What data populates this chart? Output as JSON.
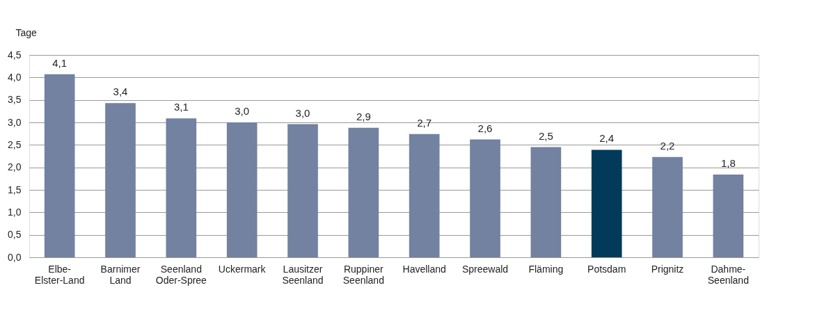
{
  "chart_data": {
    "type": "bar",
    "ylabel": "Tage",
    "categories": [
      "Elbe-\nElster-Land",
      "Barnimer\nLand",
      "Seenland\nOder-Spree",
      "Uckermark",
      "Lausitzer\nSeenland",
      "Ruppiner\nSeenland",
      "Havelland",
      "Spreewald",
      "Fläming",
      "Potsdam",
      "Prignitz",
      "Dahme-\nSeenland"
    ],
    "values": [
      4.07,
      3.43,
      3.09,
      3.0,
      2.96,
      2.88,
      2.74,
      2.62,
      2.45,
      2.39,
      2.23,
      1.84
    ],
    "value_labels": [
      "4,1",
      "3,4",
      "3,1",
      "3,0",
      "3,0",
      "2,9",
      "2,7",
      "2,6",
      "2,5",
      "2,4",
      "2,2",
      "1,8"
    ],
    "colors": [
      "#7282a0",
      "#7282a0",
      "#7282a0",
      "#7282a0",
      "#7282a0",
      "#7282a0",
      "#7282a0",
      "#7282a0",
      "#7282a0",
      "#023a5a",
      "#7282a0",
      "#7282a0"
    ],
    "ylim": [
      0,
      4.5
    ],
    "yticks": [
      {
        "value": 0,
        "label": "0,0"
      },
      {
        "value": 0.5,
        "label": "0,5"
      },
      {
        "value": 1,
        "label": "1,0"
      },
      {
        "value": 1.5,
        "label": "1,5"
      },
      {
        "value": 2,
        "label": "2,0"
      },
      {
        "value": 2.5,
        "label": "2,5"
      },
      {
        "value": 3,
        "label": "3,0"
      },
      {
        "value": 3.5,
        "label": "3,5"
      },
      {
        "value": 4,
        "label": "4,0"
      },
      {
        "value": 4.5,
        "label": "4,5"
      }
    ],
    "grid": "y"
  }
}
